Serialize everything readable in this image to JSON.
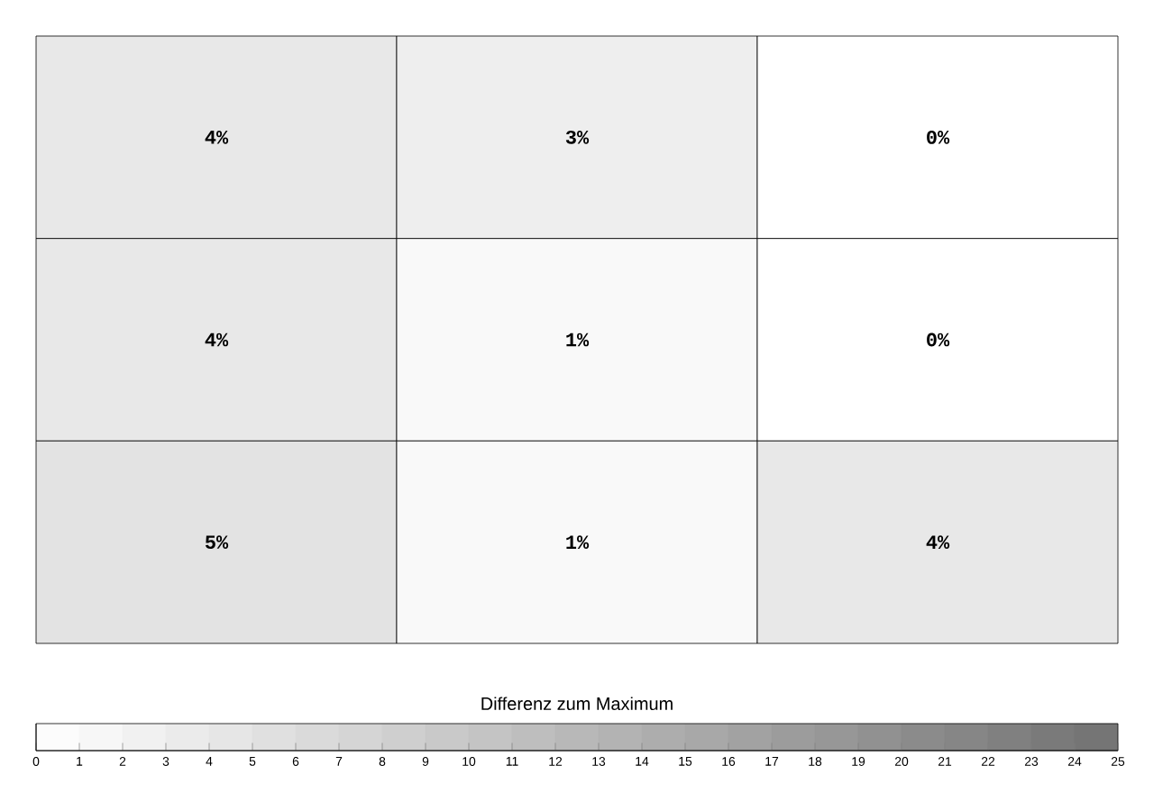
{
  "chart_data": {
    "type": "heatmap",
    "clabel": "Differenz zum Maximum",
    "categories": [
      null,
      null,
      null
    ],
    "y_categories": [
      null,
      null,
      null
    ],
    "cells": [
      [
        4,
        3,
        0
      ],
      [
        4,
        1,
        0
      ],
      [
        5,
        1,
        4
      ]
    ],
    "cell_labels": [
      [
        "4%",
        "3%",
        "0%"
      ],
      [
        "4%",
        "1%",
        "0%"
      ],
      [
        "5%",
        "1%",
        "4%"
      ]
    ],
    "clim": [
      0,
      25
    ],
    "cticks": [
      0,
      1,
      2,
      3,
      4,
      5,
      6,
      7,
      8,
      9,
      10,
      11,
      12,
      13,
      14,
      15,
      16,
      17,
      18,
      19,
      20,
      21,
      22,
      23,
      24,
      25
    ]
  }
}
